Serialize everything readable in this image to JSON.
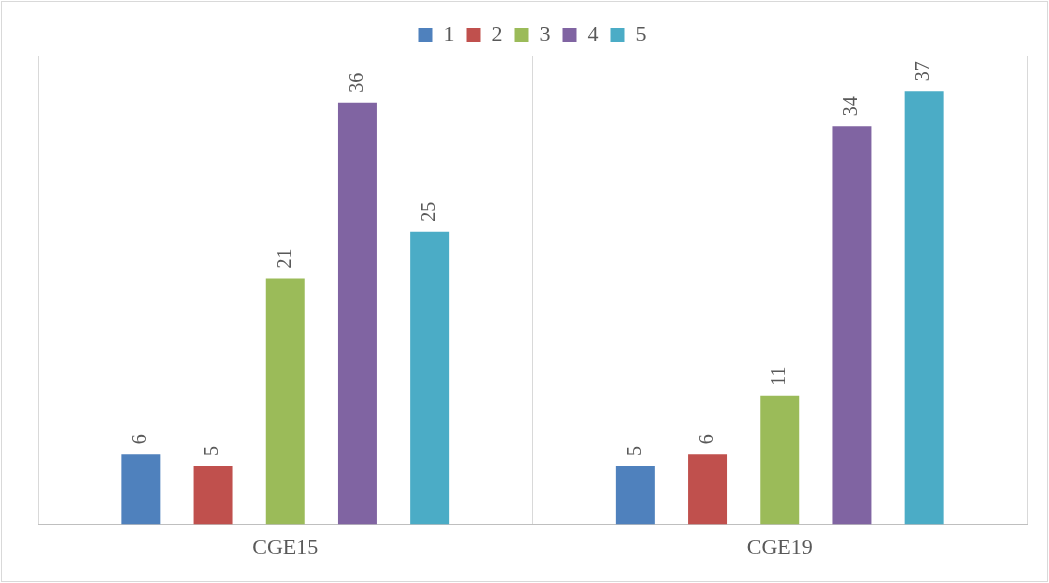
{
  "chart_data": {
    "type": "bar",
    "categories": [
      "CGE15",
      "CGE19"
    ],
    "series": [
      {
        "name": "1",
        "color": "#4f81bd",
        "values": [
          6,
          5
        ]
      },
      {
        "name": "2",
        "color": "#c0504d",
        "values": [
          5,
          6
        ]
      },
      {
        "name": "3",
        "color": "#9bbb59",
        "values": [
          21,
          11
        ]
      },
      {
        "name": "4",
        "color": "#8064a2",
        "values": [
          36,
          34
        ]
      },
      {
        "name": "5",
        "color": "#4bacc6",
        "values": [
          25,
          37
        ]
      }
    ],
    "data_labels": true,
    "legend": "top",
    "grid": "x"
  }
}
